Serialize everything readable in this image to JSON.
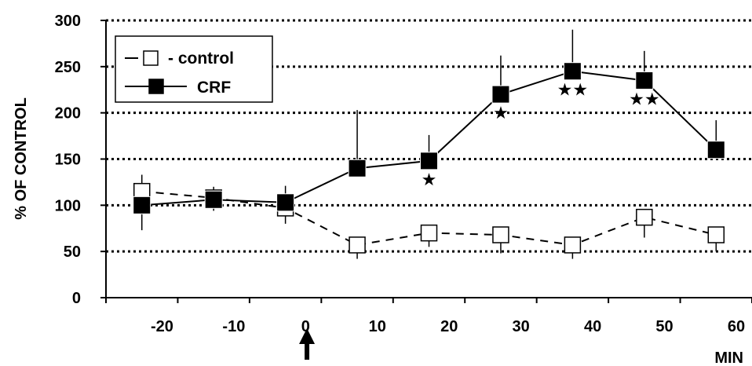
{
  "chart_data": {
    "type": "line",
    "x": [
      -25,
      -15,
      -5,
      5,
      15,
      25,
      35,
      45,
      55
    ],
    "xticks": [
      -20,
      -10,
      0,
      10,
      20,
      30,
      40,
      50,
      60
    ],
    "xtick_labels": [
      "-20",
      "-10",
      "0",
      "10",
      "20",
      "30",
      "40",
      "50",
      "60"
    ],
    "xlabel": "MIN",
    "ylabel": "% OF CONTROL",
    "xlim": [
      -30,
      60
    ],
    "ylim": [
      0,
      300
    ],
    "yticks": [
      0,
      50,
      100,
      150,
      200,
      250,
      300
    ],
    "ytick_labels": [
      "0",
      "50",
      "100",
      "150",
      "200",
      "250",
      "300"
    ],
    "grid": "horizontal dotted",
    "legend_position": "top-left",
    "series": [
      {
        "name": "control",
        "legend_label": "- control",
        "marker": "open-square",
        "line": "dashed",
        "values": [
          115,
          108,
          97,
          57,
          70,
          68,
          57,
          87,
          68
        ],
        "errors": [
          18,
          12,
          17,
          15,
          15,
          20,
          15,
          22,
          18
        ]
      },
      {
        "name": "CRF",
        "legend_label": "CRF",
        "marker": "filled-square",
        "line": "solid",
        "values": [
          100,
          106,
          103,
          140,
          148,
          220,
          245,
          235,
          160
        ],
        "errors": [
          27,
          12,
          18,
          63,
          28,
          42,
          45,
          32,
          32
        ]
      }
    ],
    "significance": [
      {
        "x": 15,
        "label": "★"
      },
      {
        "x": 25,
        "label": "★"
      },
      {
        "x": 35,
        "label": "★★"
      },
      {
        "x": 45,
        "label": "★★"
      }
    ],
    "annotation_arrow_x": -2
  }
}
